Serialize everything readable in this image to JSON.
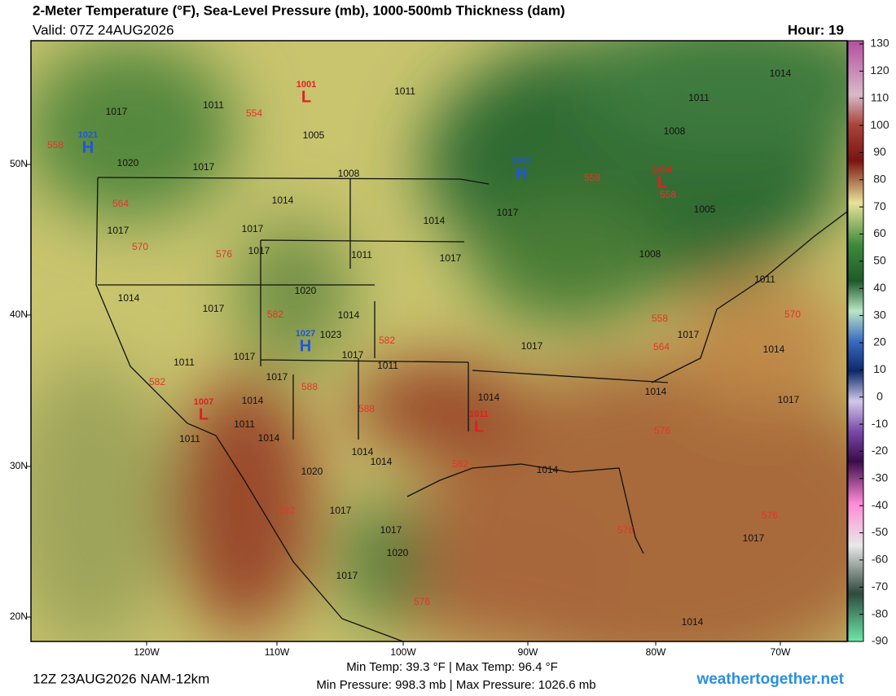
{
  "header": {
    "title": "2-Meter Temperature (°F), Sea-Level Pressure (mb), 1000-500mb Thickness (dam)",
    "valid": "Valid: 07Z 24AUG2026",
    "hour": "Hour: 19"
  },
  "axes": {
    "lat_labels": [
      "50N",
      "40N",
      "30N",
      "20N"
    ],
    "lon_labels": [
      "120W",
      "110W",
      "100W",
      "90W",
      "80W",
      "70W"
    ]
  },
  "colorbar": {
    "ticks": [
      130,
      120,
      110,
      100,
      90,
      80,
      70,
      60,
      50,
      40,
      30,
      20,
      10,
      0,
      -10,
      -20,
      -30,
      -40,
      -50,
      -60,
      -70,
      -80,
      -90
    ]
  },
  "map": {
    "centers": [
      {
        "kind": "H",
        "pressure": "1021"
      },
      {
        "kind": "L",
        "pressure": "1001"
      },
      {
        "kind": "H",
        "pressure": "1017"
      },
      {
        "kind": "L",
        "pressure": "1004"
      },
      {
        "kind": "H",
        "pressure": "1027"
      },
      {
        "kind": "L",
        "pressure": "1007"
      },
      {
        "kind": "L",
        "pressure": "1011"
      }
    ],
    "isobar_labels": [
      "1017",
      "1011",
      "1020",
      "1017",
      "1005",
      "1011",
      "1008",
      "1014",
      "1011",
      "1008",
      "1005",
      "1014",
      "1017",
      "1014",
      "1017",
      "1017",
      "1017",
      "1011",
      "1017",
      "1008",
      "1011",
      "1014",
      "1017",
      "1020",
      "1014",
      "1023",
      "1017",
      "1017",
      "1011",
      "1011",
      "1017",
      "1014",
      "1017",
      "1014",
      "1011",
      "1014",
      "1011",
      "1014",
      "1014",
      "1017",
      "1014",
      "1014",
      "1020",
      "1014",
      "1017",
      "1017",
      "1020",
      "1017",
      "1014",
      "1017",
      "1017"
    ],
    "thickness_labels": [
      "554",
      "558",
      "564",
      "570",
      "576",
      "582",
      "582",
      "582",
      "588",
      "588",
      "582",
      "582",
      "576",
      "570",
      "564",
      "558",
      "558",
      "558",
      "576",
      "576",
      "576"
    ]
  },
  "footer": {
    "run": "12Z 23AUG2026 NAM-12km",
    "temps": "Min Temp:  39.3 °F | Max Temp:  96.4 °F",
    "pressures": "Min Pressure: 998.3 mb | Max Pressure: 1026.6 mb",
    "site": "weathertogether.net"
  }
}
